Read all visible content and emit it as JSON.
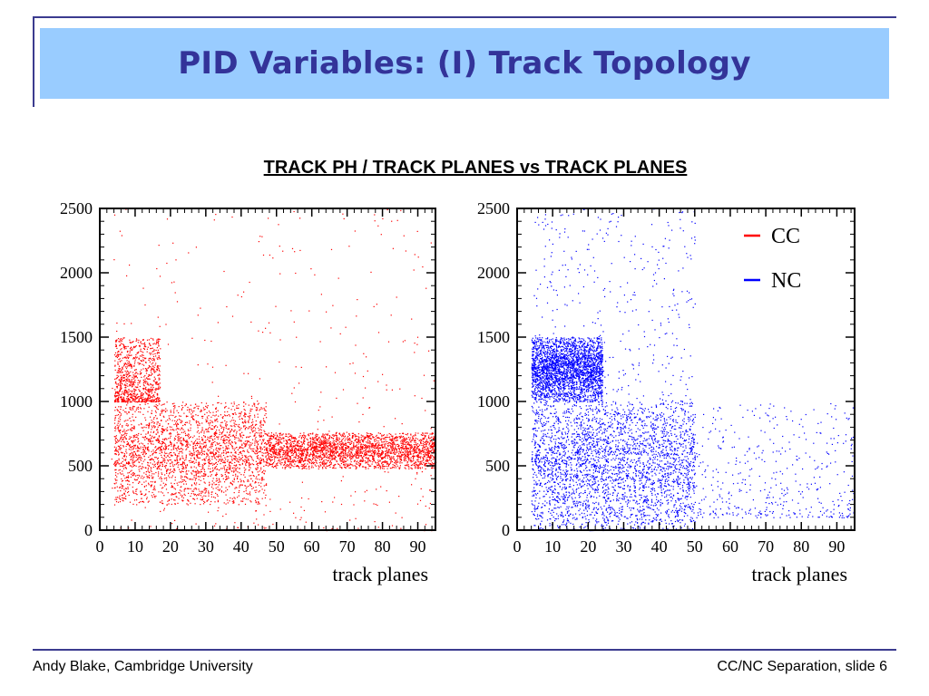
{
  "slide": {
    "title": "PID Variables: (I) Track Topology",
    "subtitle": "TRACK PH / TRACK PLANES vs TRACK PLANES",
    "footer_left": "Andy Blake, Cambridge University",
    "footer_right": "CC/NC Separation, slide 6",
    "colors": {
      "title_bg": "#99ccff",
      "title_text": "#333399",
      "rule": "#3b3b8f"
    }
  },
  "chart_data": [
    {
      "type": "scatter",
      "xlabel": "track planes",
      "ylabel": "",
      "xlim": [
        0,
        95
      ],
      "ylim": [
        0,
        2500
      ],
      "xticks": [
        "0",
        "10",
        "20",
        "30",
        "40",
        "50",
        "60",
        "70",
        "80",
        "90"
      ],
      "yticks": [
        "0",
        "500",
        "1000",
        "1500",
        "2000",
        "2500"
      ],
      "series": [
        {
          "color": "#ff0000",
          "regions": [
            {
              "x": [
                4,
                47
              ],
              "y": [
                200,
                1000
              ],
              "density": "high"
            },
            {
              "x": [
                47,
                95
              ],
              "y": [
                480,
                760
              ],
              "density": "high"
            },
            {
              "x": [
                4,
                17
              ],
              "y": [
                1000,
                1500
              ],
              "density": "medium"
            },
            {
              "x": [
                3,
                95
              ],
              "y": [
                0,
                2500
              ],
              "density": "low"
            }
          ]
        }
      ]
    },
    {
      "type": "scatter",
      "xlabel": "track planes",
      "ylabel": "",
      "xlim": [
        0,
        95
      ],
      "ylim": [
        0,
        2500
      ],
      "xticks": [
        "0",
        "10",
        "20",
        "30",
        "40",
        "50",
        "60",
        "70",
        "80",
        "90"
      ],
      "yticks": [
        "0",
        "500",
        "1000",
        "1500",
        "2000",
        "2500"
      ],
      "legend": {
        "position": "top-right"
      },
      "series": [
        {
          "name": "CC",
          "color": "#ff0000",
          "regions": []
        },
        {
          "name": "NC",
          "color": "#0000ff",
          "regions": [
            {
              "x": [
                4,
                50
              ],
              "y": [
                50,
                1000
              ],
              "density": "high"
            },
            {
              "x": [
                4,
                24
              ],
              "y": [
                1000,
                1500
              ],
              "density": "high"
            },
            {
              "x": [
                4,
                50
              ],
              "y": [
                0,
                2500
              ],
              "density": "medium"
            },
            {
              "x": [
                50,
                95
              ],
              "y": [
                100,
                1000
              ],
              "density": "low"
            }
          ]
        }
      ]
    }
  ]
}
